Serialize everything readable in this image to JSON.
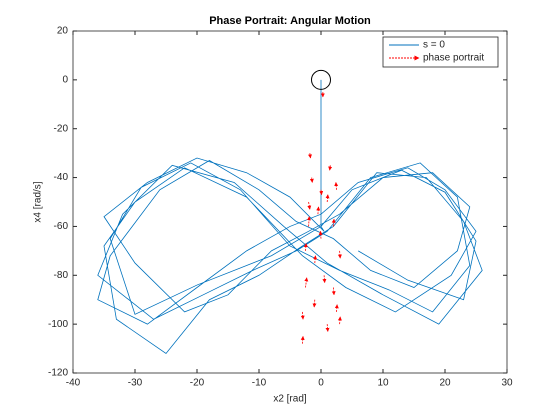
{
  "chart_data": {
    "type": "line",
    "title": "Phase Portrait: Angular Motion",
    "xlabel": "x2 [rad]",
    "ylabel": "x4 [rad/s]",
    "xlim": [
      -40,
      30
    ],
    "ylim": [
      -120,
      20
    ],
    "xticks": [
      -40,
      -30,
      -20,
      -10,
      0,
      10,
      20,
      30
    ],
    "yticks": [
      -120,
      -100,
      -80,
      -60,
      -40,
      -20,
      0,
      20
    ],
    "legend": "northeast",
    "circle_marker": {
      "x": 0,
      "y": 0
    },
    "series": [
      {
        "name": "s = 0",
        "type": "line",
        "color": "#0072bd",
        "x": [
          0,
          0,
          0.5,
          -5,
          -12,
          -20,
          -28,
          -35,
          -30,
          -22,
          -15,
          -8,
          -2,
          3,
          10,
          18,
          24,
          22,
          15,
          8,
          2,
          -4,
          -10,
          -18,
          -26,
          -34,
          -36,
          -28,
          -20,
          -12,
          -5,
          0,
          6,
          14,
          20,
          25,
          21,
          12,
          4,
          -3,
          -12,
          -22,
          -30,
          -35,
          -33,
          -25,
          -18,
          -10,
          -3,
          2,
          9,
          17,
          23,
          26,
          19,
          10,
          1,
          -6,
          -14,
          -24,
          -32,
          -36,
          -27,
          -19,
          -11,
          -4,
          1,
          8,
          16,
          22,
          24,
          18,
          11,
          3,
          -5,
          -13,
          -21,
          -29,
          -34,
          -30,
          -20,
          -8,
          0,
          5,
          13,
          20,
          25,
          23,
          14,
          6
        ],
        "values": [
          0,
          -60,
          -62,
          -48,
          -38,
          -32,
          -42,
          -56,
          -75,
          -95,
          -88,
          -70,
          -62,
          -55,
          -40,
          -38,
          -52,
          -70,
          -85,
          -78,
          -65,
          -58,
          -45,
          -33,
          -45,
          -72,
          -90,
          -100,
          -85,
          -70,
          -60,
          -55,
          -42,
          -36,
          -45,
          -62,
          -80,
          -95,
          -85,
          -72,
          -48,
          -36,
          -50,
          -68,
          -98,
          -112,
          -90,
          -80,
          -68,
          -60,
          -38,
          -40,
          -58,
          -78,
          -100,
          -88,
          -75,
          -60,
          -42,
          -35,
          -55,
          -80,
          -98,
          -88,
          -78,
          -70,
          -62,
          -40,
          -34,
          -48,
          -76,
          -95,
          -86,
          -78,
          -68,
          -45,
          -34,
          -44,
          -65,
          -96,
          -84,
          -72,
          -60,
          -45,
          -37,
          -46,
          -66,
          -90,
          -82,
          -70
        ]
      },
      {
        "name": "phase portrait",
        "type": "quiver",
        "color": "#ff0000",
        "x": [
          -3,
          -3,
          -2.5,
          -2.5,
          -2,
          -2,
          -1.5,
          -1,
          -1,
          -0.5,
          0,
          0,
          0.5,
          1,
          1,
          1.5,
          2,
          2,
          2.5,
          2.5,
          3,
          3,
          -1.8,
          0.3
        ],
        "values": [
          -108,
          -95,
          -85,
          -70,
          -50,
          -60,
          -40,
          -75,
          -90,
          -55,
          -45,
          -65,
          -80,
          -100,
          -50,
          -35,
          -60,
          -85,
          -45,
          -95,
          -70,
          -100,
          -30,
          -5
        ],
        "u": [
          0.1,
          0.1,
          0.2,
          0.1,
          0.2,
          0.1,
          0.1,
          0.1,
          -0.1,
          0.1,
          0.1,
          -0.1,
          0.1,
          0.1,
          0.1,
          -0.1,
          0.1,
          0.1,
          -0.1,
          0.1,
          0.1,
          0.1,
          0.1,
          0
        ],
        "v": [
          3,
          -3,
          4,
          3,
          -3,
          4,
          -2,
          3,
          -3,
          3,
          -2,
          3,
          -3,
          -3,
          3,
          -2,
          3,
          -3,
          3,
          3,
          -3,
          3,
          -2,
          -2
        ]
      }
    ]
  }
}
